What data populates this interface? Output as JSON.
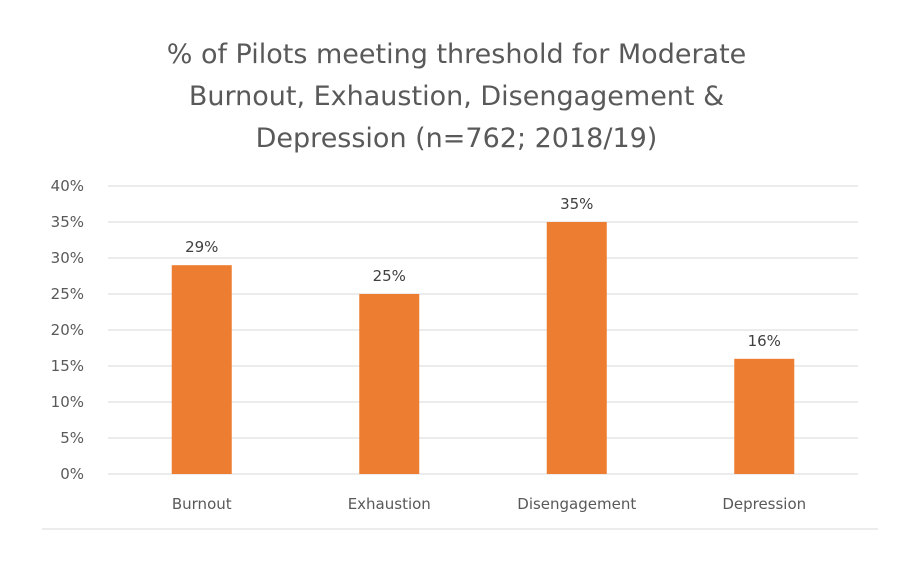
{
  "chart_data": {
    "type": "bar",
    "title_lines": [
      "% of Pilots meeting threshold for Moderate",
      "Burnout, Exhaustion, Disengagement &",
      "Depression (n=762; 2018/19)"
    ],
    "categories": [
      "Burnout",
      "Exhaustion",
      "Disengagement",
      "Depression"
    ],
    "values": [
      29,
      25,
      35,
      16
    ],
    "data_labels": [
      "29%",
      "25%",
      "35%",
      "16%"
    ],
    "y_ticks": [
      "0%",
      "5%",
      "10%",
      "15%",
      "20%",
      "25%",
      "30%",
      "35%",
      "40%"
    ],
    "ylim": [
      0,
      40
    ],
    "xlabel": "",
    "ylabel": "",
    "grid": true,
    "legend": "none",
    "bar_color": "#ED7D31",
    "gridline_color": "#D9D9D9"
  }
}
